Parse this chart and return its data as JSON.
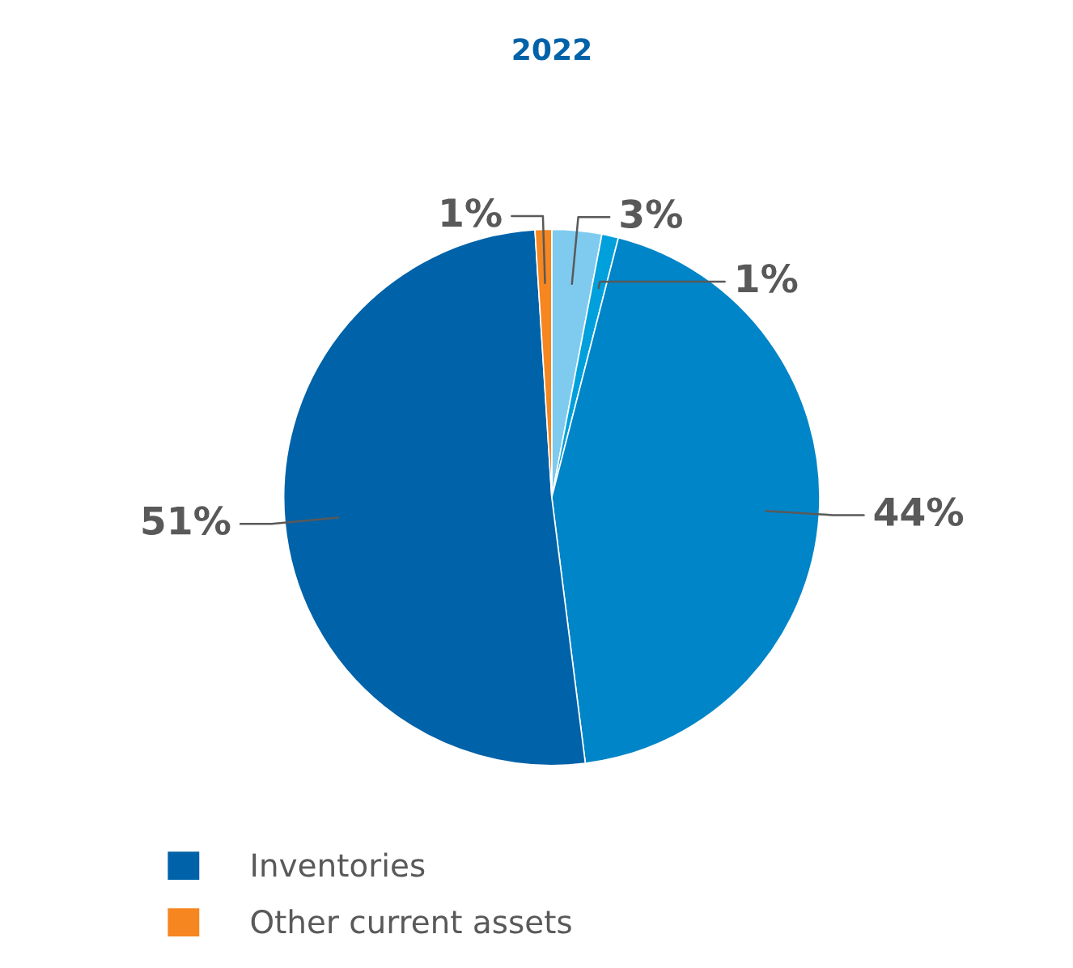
{
  "chart_data": {
    "type": "pie",
    "title": "2022",
    "categories": [
      null,
      null,
      null,
      "Inventories",
      "Other current assets"
    ],
    "values": [
      3,
      1,
      44,
      51,
      1
    ],
    "value_labels": [
      "3%",
      "1%",
      "44%",
      "51%",
      "1%"
    ],
    "colors": [
      "#7fcbef",
      "#00a0dc",
      "#0085c8",
      "#0062a8",
      "#f6861f"
    ],
    "legend": "bottom left"
  }
}
